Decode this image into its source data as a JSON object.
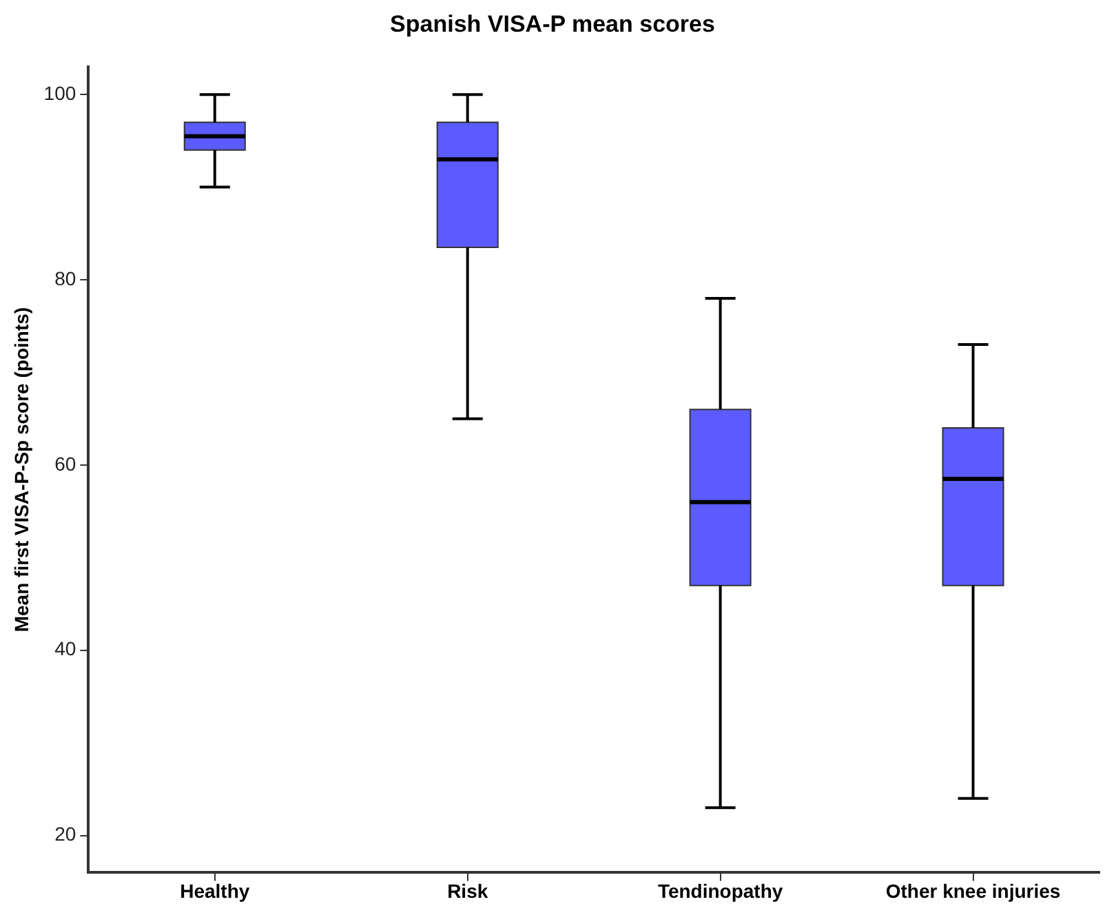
{
  "chart_data": {
    "type": "box",
    "title": "Spanish VISA-P mean scores",
    "ylabel": "Mean first VISA-P-Sp score (points)",
    "categories": [
      "Healthy",
      "Risk",
      "Tendinopathy",
      "Other knee injuries"
    ],
    "color": "#5b5bff",
    "boxes": [
      {
        "low": 90,
        "q1": 94,
        "median": 95.5,
        "q3": 97,
        "high": 100
      },
      {
        "low": 65,
        "q1": 83.5,
        "median": 93,
        "q3": 97,
        "high": 100
      },
      {
        "low": 23,
        "q1": 47,
        "median": 56,
        "q3": 66,
        "high": 78
      },
      {
        "low": 24,
        "q1": 47,
        "median": 58.5,
        "q3": 64,
        "high": 73
      }
    ],
    "ylim": [
      16,
      103
    ],
    "yticks": [
      20,
      40,
      60,
      80,
      100
    ],
    "grid": false,
    "legend": false
  }
}
